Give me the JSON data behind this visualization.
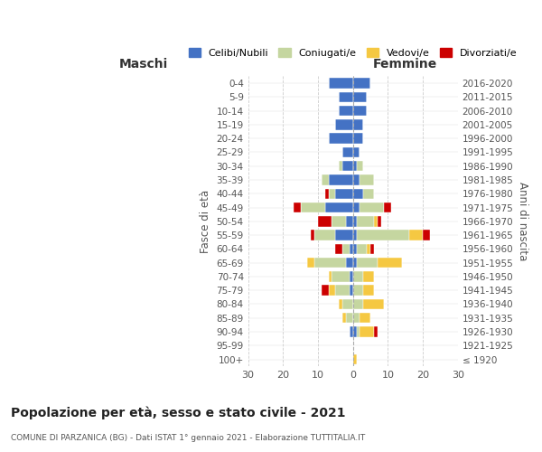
{
  "age_groups": [
    "100+",
    "95-99",
    "90-94",
    "85-89",
    "80-84",
    "75-79",
    "70-74",
    "65-69",
    "60-64",
    "55-59",
    "50-54",
    "45-49",
    "40-44",
    "35-39",
    "30-34",
    "25-29",
    "20-24",
    "15-19",
    "10-14",
    "5-9",
    "0-4"
  ],
  "birth_years": [
    "≤ 1920",
    "1921-1925",
    "1926-1930",
    "1931-1935",
    "1936-1940",
    "1941-1945",
    "1946-1950",
    "1951-1955",
    "1956-1960",
    "1961-1965",
    "1966-1970",
    "1971-1975",
    "1976-1980",
    "1981-1985",
    "1986-1990",
    "1991-1995",
    "1996-2000",
    "2001-2005",
    "2006-2010",
    "2011-2015",
    "2016-2020"
  ],
  "colors": {
    "celibi": "#4472C4",
    "coniugati": "#c5d6a0",
    "vedovi": "#F5C842",
    "divorziati": "#CC0000"
  },
  "males": {
    "celibi": [
      0,
      0,
      1,
      0,
      0,
      1,
      1,
      2,
      1,
      5,
      2,
      8,
      5,
      7,
      3,
      3,
      7,
      5,
      4,
      4,
      7
    ],
    "coniugati": [
      0,
      0,
      0,
      2,
      3,
      4,
      5,
      9,
      2,
      6,
      4,
      7,
      2,
      2,
      1,
      0,
      0,
      0,
      0,
      0,
      0
    ],
    "vedovi": [
      0,
      0,
      0,
      1,
      1,
      2,
      1,
      2,
      0,
      0,
      0,
      0,
      0,
      0,
      0,
      0,
      0,
      0,
      0,
      0,
      0
    ],
    "divorziati": [
      0,
      0,
      0,
      0,
      0,
      2,
      0,
      0,
      2,
      1,
      4,
      2,
      1,
      0,
      0,
      0,
      0,
      0,
      0,
      0,
      0
    ]
  },
  "females": {
    "nubili": [
      0,
      0,
      1,
      0,
      0,
      0,
      0,
      1,
      1,
      1,
      1,
      2,
      3,
      2,
      1,
      2,
      3,
      3,
      4,
      4,
      5
    ],
    "coniugate": [
      0,
      0,
      1,
      2,
      3,
      3,
      3,
      6,
      3,
      15,
      5,
      7,
      3,
      4,
      2,
      0,
      0,
      0,
      0,
      0,
      0
    ],
    "vedove": [
      1,
      0,
      4,
      3,
      6,
      3,
      3,
      7,
      1,
      4,
      1,
      0,
      0,
      0,
      0,
      0,
      0,
      0,
      0,
      0,
      0
    ],
    "divorziate": [
      0,
      0,
      1,
      0,
      0,
      0,
      0,
      0,
      1,
      2,
      1,
      2,
      0,
      0,
      0,
      0,
      0,
      0,
      0,
      0,
      0
    ]
  },
  "xlim": 30,
  "title": "Popolazione per età, sesso e stato civile - 2021",
  "subtitle": "COMUNE DI PARZANICA (BG) - Dati ISTAT 1° gennaio 2021 - Elaborazione TUTTITALIA.IT",
  "ylabel_left": "Fasce di età",
  "ylabel_right": "Anni di nascita",
  "xlabel_left": "Maschi",
  "xlabel_right": "Femmine",
  "legend_labels": [
    "Celibi/Nubili",
    "Coniugati/e",
    "Vedovi/e",
    "Divorziati/e"
  ]
}
